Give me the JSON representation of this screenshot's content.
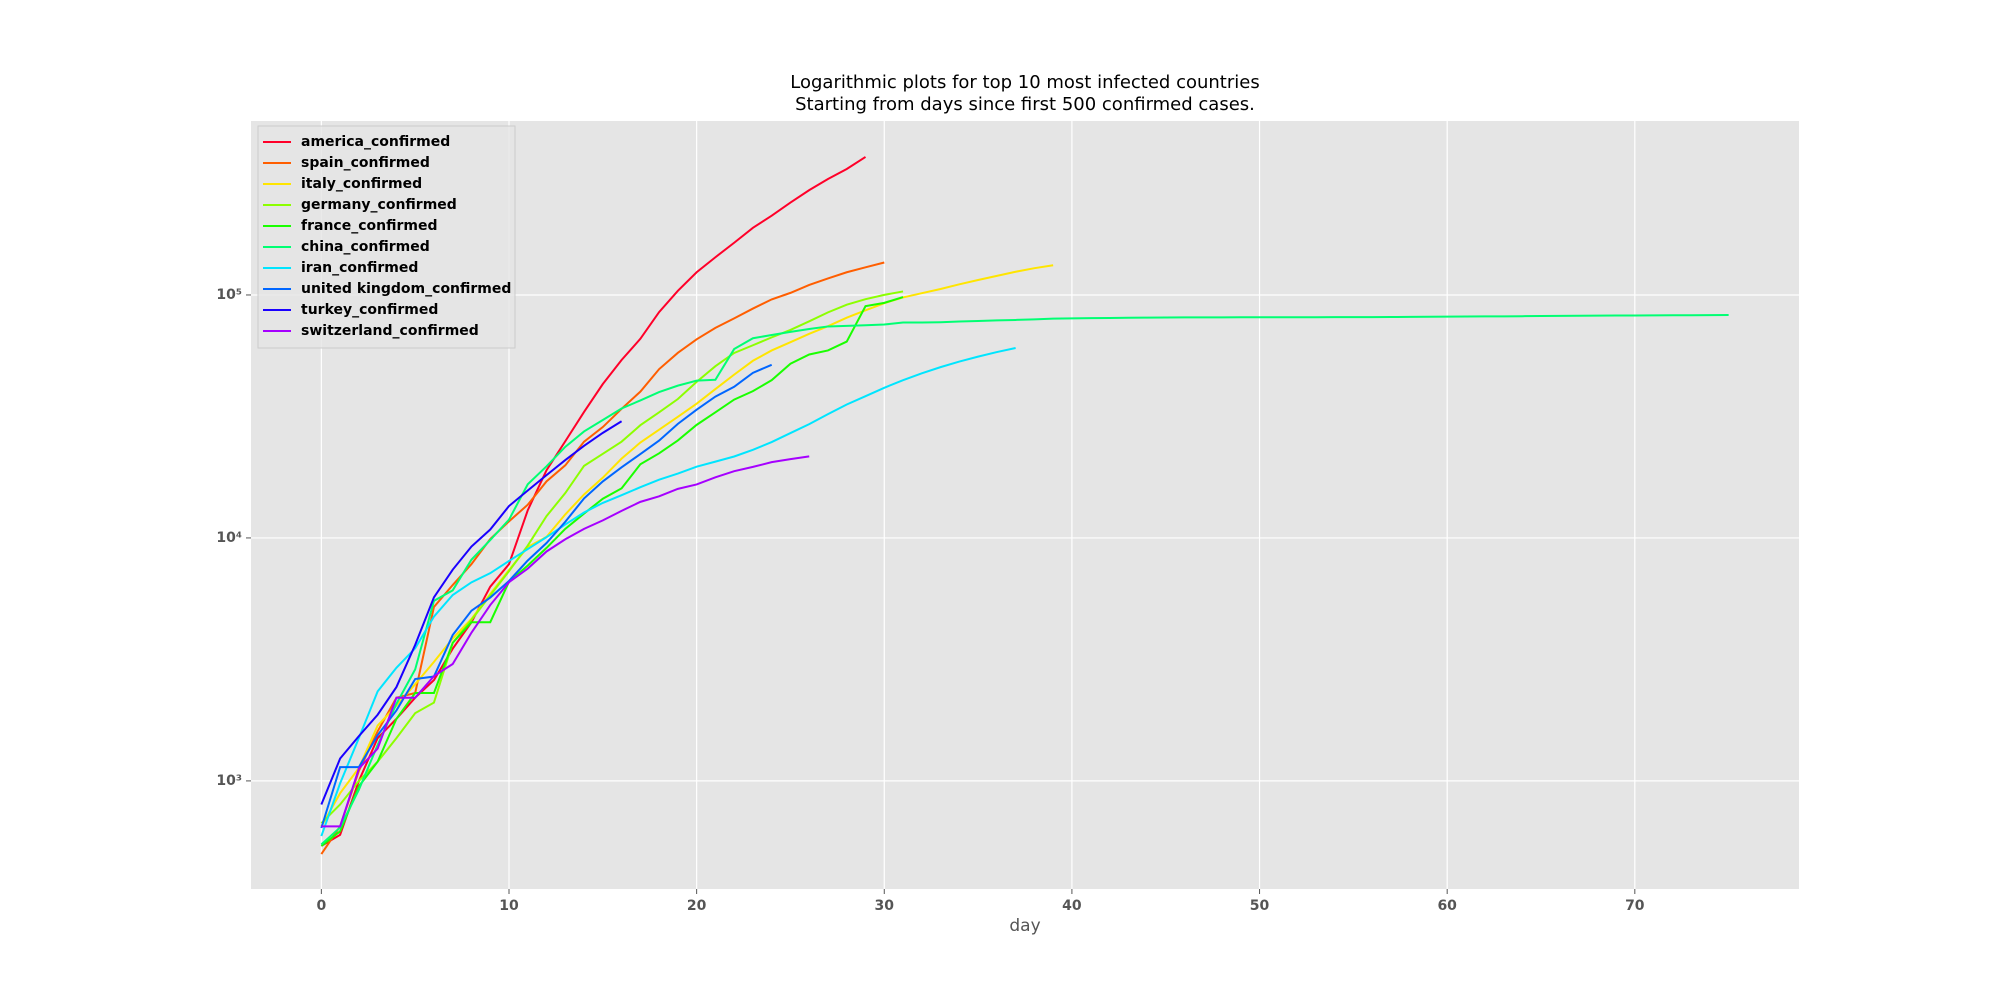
{
  "chart_data": {
    "type": "line",
    "title": "Logarithmic plots for top 10 most infected countries",
    "subtitle": "Starting from days since first 500 confirmed cases.",
    "x_label": "day",
    "x": [
      0,
      1,
      2,
      3,
      4,
      5,
      6,
      7,
      8,
      9,
      10,
      11,
      12,
      13,
      14,
      15,
      16,
      17,
      18,
      19,
      20,
      21,
      22,
      23,
      24,
      25,
      26,
      27,
      28,
      29,
      30,
      31,
      32,
      33,
      34,
      35,
      36,
      37,
      38,
      39,
      40,
      41,
      42,
      43,
      44,
      45,
      46,
      47,
      48,
      49,
      50,
      51,
      52,
      53,
      54,
      55,
      56,
      57,
      58,
      59,
      60,
      61,
      62,
      63,
      64,
      65,
      66,
      67,
      68,
      69,
      70,
      71,
      72,
      73,
      74,
      75
    ],
    "xlim": [
      -3.75,
      78.75
    ],
    "xticks": [
      0,
      10,
      20,
      30,
      40,
      50,
      60,
      70
    ],
    "ylim": [
      359,
      520000
    ],
    "yscale": "log",
    "yticks": [
      {
        "value": 1000,
        "label": "10³"
      },
      {
        "value": 10000,
        "label": "10⁴"
      },
      {
        "value": 100000,
        "label": "10⁵"
      }
    ],
    "grid": true,
    "legend_loc": "upper left",
    "series": [
      {
        "name": "america_confirmed",
        "color": "#ff0029",
        "values": [
          540,
          600,
          1000,
          1500,
          1800,
          2200,
          2600,
          3500,
          4500,
          6300,
          7800,
          13000,
          19000,
          25000,
          33000,
          43000,
          54000,
          66000,
          85000,
          104000,
          124000,
          143000,
          164000,
          189000,
          212000,
          240000,
          270000,
          300000,
          330000,
          370000,
          null,
          null,
          null,
          null,
          null,
          null,
          null,
          null,
          null,
          null,
          null,
          null,
          null,
          null,
          null,
          null,
          null,
          null,
          null,
          null,
          null,
          null,
          null,
          null,
          null,
          null,
          null,
          null,
          null,
          null,
          null,
          null,
          null,
          null,
          null,
          null,
          null,
          null,
          null,
          null,
          null,
          null,
          null,
          null,
          null,
          null
        ]
      },
      {
        "name": "spain_confirmed",
        "color": "#ff5e00",
        "values": [
          500,
          650,
          1100,
          1600,
          2200,
          2300,
          5200,
          6400,
          7800,
          9900,
          11700,
          13700,
          17100,
          19900,
          24900,
          28600,
          34000,
          40000,
          49500,
          57800,
          65700,
          73200,
          80100,
          87900,
          95900,
          102000,
          110000,
          117000,
          124000,
          130000,
          136000,
          null,
          null,
          null,
          null,
          null,
          null,
          null,
          null,
          null,
          null,
          null,
          null,
          null,
          null,
          null,
          null,
          null,
          null,
          null,
          null,
          null,
          null,
          null,
          null,
          null,
          null,
          null,
          null,
          null,
          null,
          null,
          null,
          null,
          null,
          null,
          null,
          null,
          null,
          null,
          null,
          null,
          null,
          null,
          null,
          null
        ]
      },
      {
        "name": "italy_confirmed",
        "color": "#ffe500",
        "values": [
          650,
          890,
          1130,
          1690,
          2040,
          2500,
          3090,
          3860,
          4640,
          5880,
          7380,
          9170,
          10100,
          12500,
          15100,
          17700,
          21200,
          24700,
          27900,
          31500,
          35700,
          41000,
          47000,
          53600,
          59100,
          63900,
          69200,
          74400,
          80600,
          86500,
          92500,
          97700,
          101700,
          105800,
          110600,
          115200,
          119800,
          124600,
          128900,
          132500,
          null,
          null,
          null,
          null,
          null,
          null,
          null,
          null,
          null,
          null,
          null,
          null,
          null,
          null,
          null,
          null,
          null,
          null,
          null,
          null,
          null,
          null,
          null,
          null,
          null,
          null,
          null,
          null,
          null,
          null,
          null,
          null,
          null,
          null,
          null,
          null
        ]
      },
      {
        "name": "germany_confirmed",
        "color": "#8cff00",
        "values": [
          670,
          800,
          1000,
          1200,
          1500,
          1900,
          2100,
          3700,
          4600,
          5800,
          7300,
          9300,
          12300,
          15300,
          19800,
          22200,
          24900,
          29100,
          32900,
          37300,
          43900,
          50900,
          57700,
          62100,
          66900,
          71800,
          77900,
          84800,
          91200,
          96100,
          100100,
          103400,
          null,
          null,
          null,
          null,
          null,
          null,
          null,
          null,
          null,
          null,
          null,
          null,
          null,
          null,
          null,
          null,
          null,
          null,
          null,
          null,
          null,
          null,
          null,
          null,
          null,
          null,
          null,
          null,
          null,
          null,
          null,
          null,
          null,
          null,
          null,
          null,
          null,
          null,
          null,
          null,
          null,
          null,
          null,
          null
        ]
      },
      {
        "name": "france_confirmed",
        "color": "#1aff00",
        "values": [
          540,
          620,
          950,
          1200,
          1800,
          2300,
          2300,
          3700,
          4500,
          4500,
          6600,
          7700,
          9100,
          10900,
          12600,
          14500,
          16000,
          20100,
          22300,
          25200,
          29200,
          32900,
          37100,
          40200,
          44600,
          52100,
          56900,
          59100,
          64300,
          89900,
          92800,
          98000,
          null,
          null,
          null,
          null,
          null,
          null,
          null,
          null,
          null,
          null,
          null,
          null,
          null,
          null,
          null,
          null,
          null,
          null,
          null,
          null,
          null,
          null,
          null,
          null,
          null,
          null,
          null,
          null,
          null,
          null,
          null,
          null,
          null,
          null,
          null,
          null,
          null,
          null,
          null,
          null,
          null,
          null,
          null,
          null
        ]
      },
      {
        "name": "china_confirmed",
        "color": "#00ff73",
        "values": [
          548,
          643,
          920,
          1406,
          2075,
          2877,
          5509,
          6087,
          8141,
          9802,
          11891,
          16630,
          19716,
          23707,
          27440,
          30587,
          34110,
          36814,
          39829,
          42354,
          44386,
          44759,
          59895,
          66358,
          68413,
          70513,
          72434,
          74211,
          74619,
          75077,
          75550,
          77001,
          77022,
          77241,
          77754,
          78166,
          78600,
          78928,
          79356,
          79932,
          80136,
          80261,
          80386,
          80537,
          80690,
          80770,
          80823,
          80860,
          80887,
          80921,
          80932,
          80945,
          80977,
          81003,
          81033,
          81058,
          81102,
          81156,
          81250,
          81305,
          81435,
          81498,
          81591,
          81661,
          81782,
          81897,
          81999,
          82122,
          82198,
          82279,
          82361,
          82432,
          82511,
          82543,
          82602,
          82665
        ]
      },
      {
        "name": "iran_confirmed",
        "color": "#00e5ff",
        "values": [
          593,
          978,
          1501,
          2336,
          2922,
          3513,
          4747,
          5823,
          6566,
          7161,
          8042,
          9000,
          10075,
          11364,
          12729,
          13938,
          14991,
          16169,
          17361,
          18407,
          19644,
          20610,
          21638,
          23049,
          24811,
          27017,
          29406,
          32332,
          35408,
          38309,
          41495,
          44605,
          47593,
          50468,
          53183,
          55743,
          58226,
          60500,
          null,
          null,
          null,
          null,
          null,
          null,
          null,
          null,
          null,
          null,
          null,
          null,
          null,
          null,
          null,
          null,
          null,
          null,
          null,
          null,
          null,
          null,
          null,
          null,
          null,
          null,
          null,
          null,
          null,
          null,
          null,
          null,
          null,
          null,
          null,
          null,
          null,
          null
        ]
      },
      {
        "name": "united kingdom_confirmed",
        "color": "#0066ff",
        "values": [
          640,
          1140,
          1140,
          1543,
          1950,
          2626,
          2689,
          3983,
          5018,
          5683,
          6650,
          8077,
          9529,
          11658,
          14543,
          17089,
          19522,
          22141,
          25150,
          29474,
          33718,
          38168,
          41903,
          47806,
          51608,
          null,
          null,
          null,
          null,
          null,
          null,
          null,
          null,
          null,
          null,
          null,
          null,
          null,
          null,
          null,
          null,
          null,
          null,
          null,
          null,
          null,
          null,
          null,
          null,
          null,
          null,
          null,
          null,
          null,
          null,
          null,
          null,
          null,
          null,
          null,
          null,
          null,
          null,
          null,
          null,
          null,
          null,
          null,
          null,
          null,
          null,
          null,
          null,
          null,
          null,
          null
        ]
      },
      {
        "name": "turkey_confirmed",
        "color": "#1a00ff",
        "values": [
          800,
          1236,
          1529,
          1872,
          2433,
          3629,
          5698,
          7402,
          9217,
          10827,
          13531,
          15679,
          18135,
          20921,
          23934,
          27069,
          30217,
          null,
          null,
          null,
          null,
          null,
          null,
          null,
          null,
          null,
          null,
          null,
          null,
          null,
          null,
          null,
          null,
          null,
          null,
          null,
          null,
          null,
          null,
          null,
          null,
          null,
          null,
          null,
          null,
          null,
          null,
          null,
          null,
          null,
          null,
          null,
          null,
          null,
          null,
          null,
          null,
          null,
          null,
          null,
          null,
          null,
          null,
          null,
          null,
          null,
          null,
          null,
          null,
          null,
          null,
          null,
          null,
          null,
          null,
          null
        ]
      },
      {
        "name": "switzerland_confirmed",
        "color": "#a600ff",
        "values": [
          650,
          650,
          1125,
          1359,
          2200,
          2200,
          2700,
          3028,
          4075,
          5294,
          6575,
          7474,
          8795,
          9877,
          10897,
          11811,
          12928,
          14076,
          14829,
          15922,
          16605,
          17768,
          18827,
          19606,
          20505,
          21100,
          21652,
          null,
          null,
          null,
          null,
          null,
          null,
          null,
          null,
          null,
          null,
          null,
          null,
          null,
          null,
          null,
          null,
          null,
          null,
          null,
          null,
          null,
          null,
          null,
          null,
          null,
          null,
          null,
          null,
          null,
          null,
          null,
          null,
          null,
          null,
          null,
          null,
          null,
          null,
          null,
          null,
          null,
          null,
          null,
          null,
          null,
          null,
          null,
          null,
          null
        ]
      }
    ]
  }
}
